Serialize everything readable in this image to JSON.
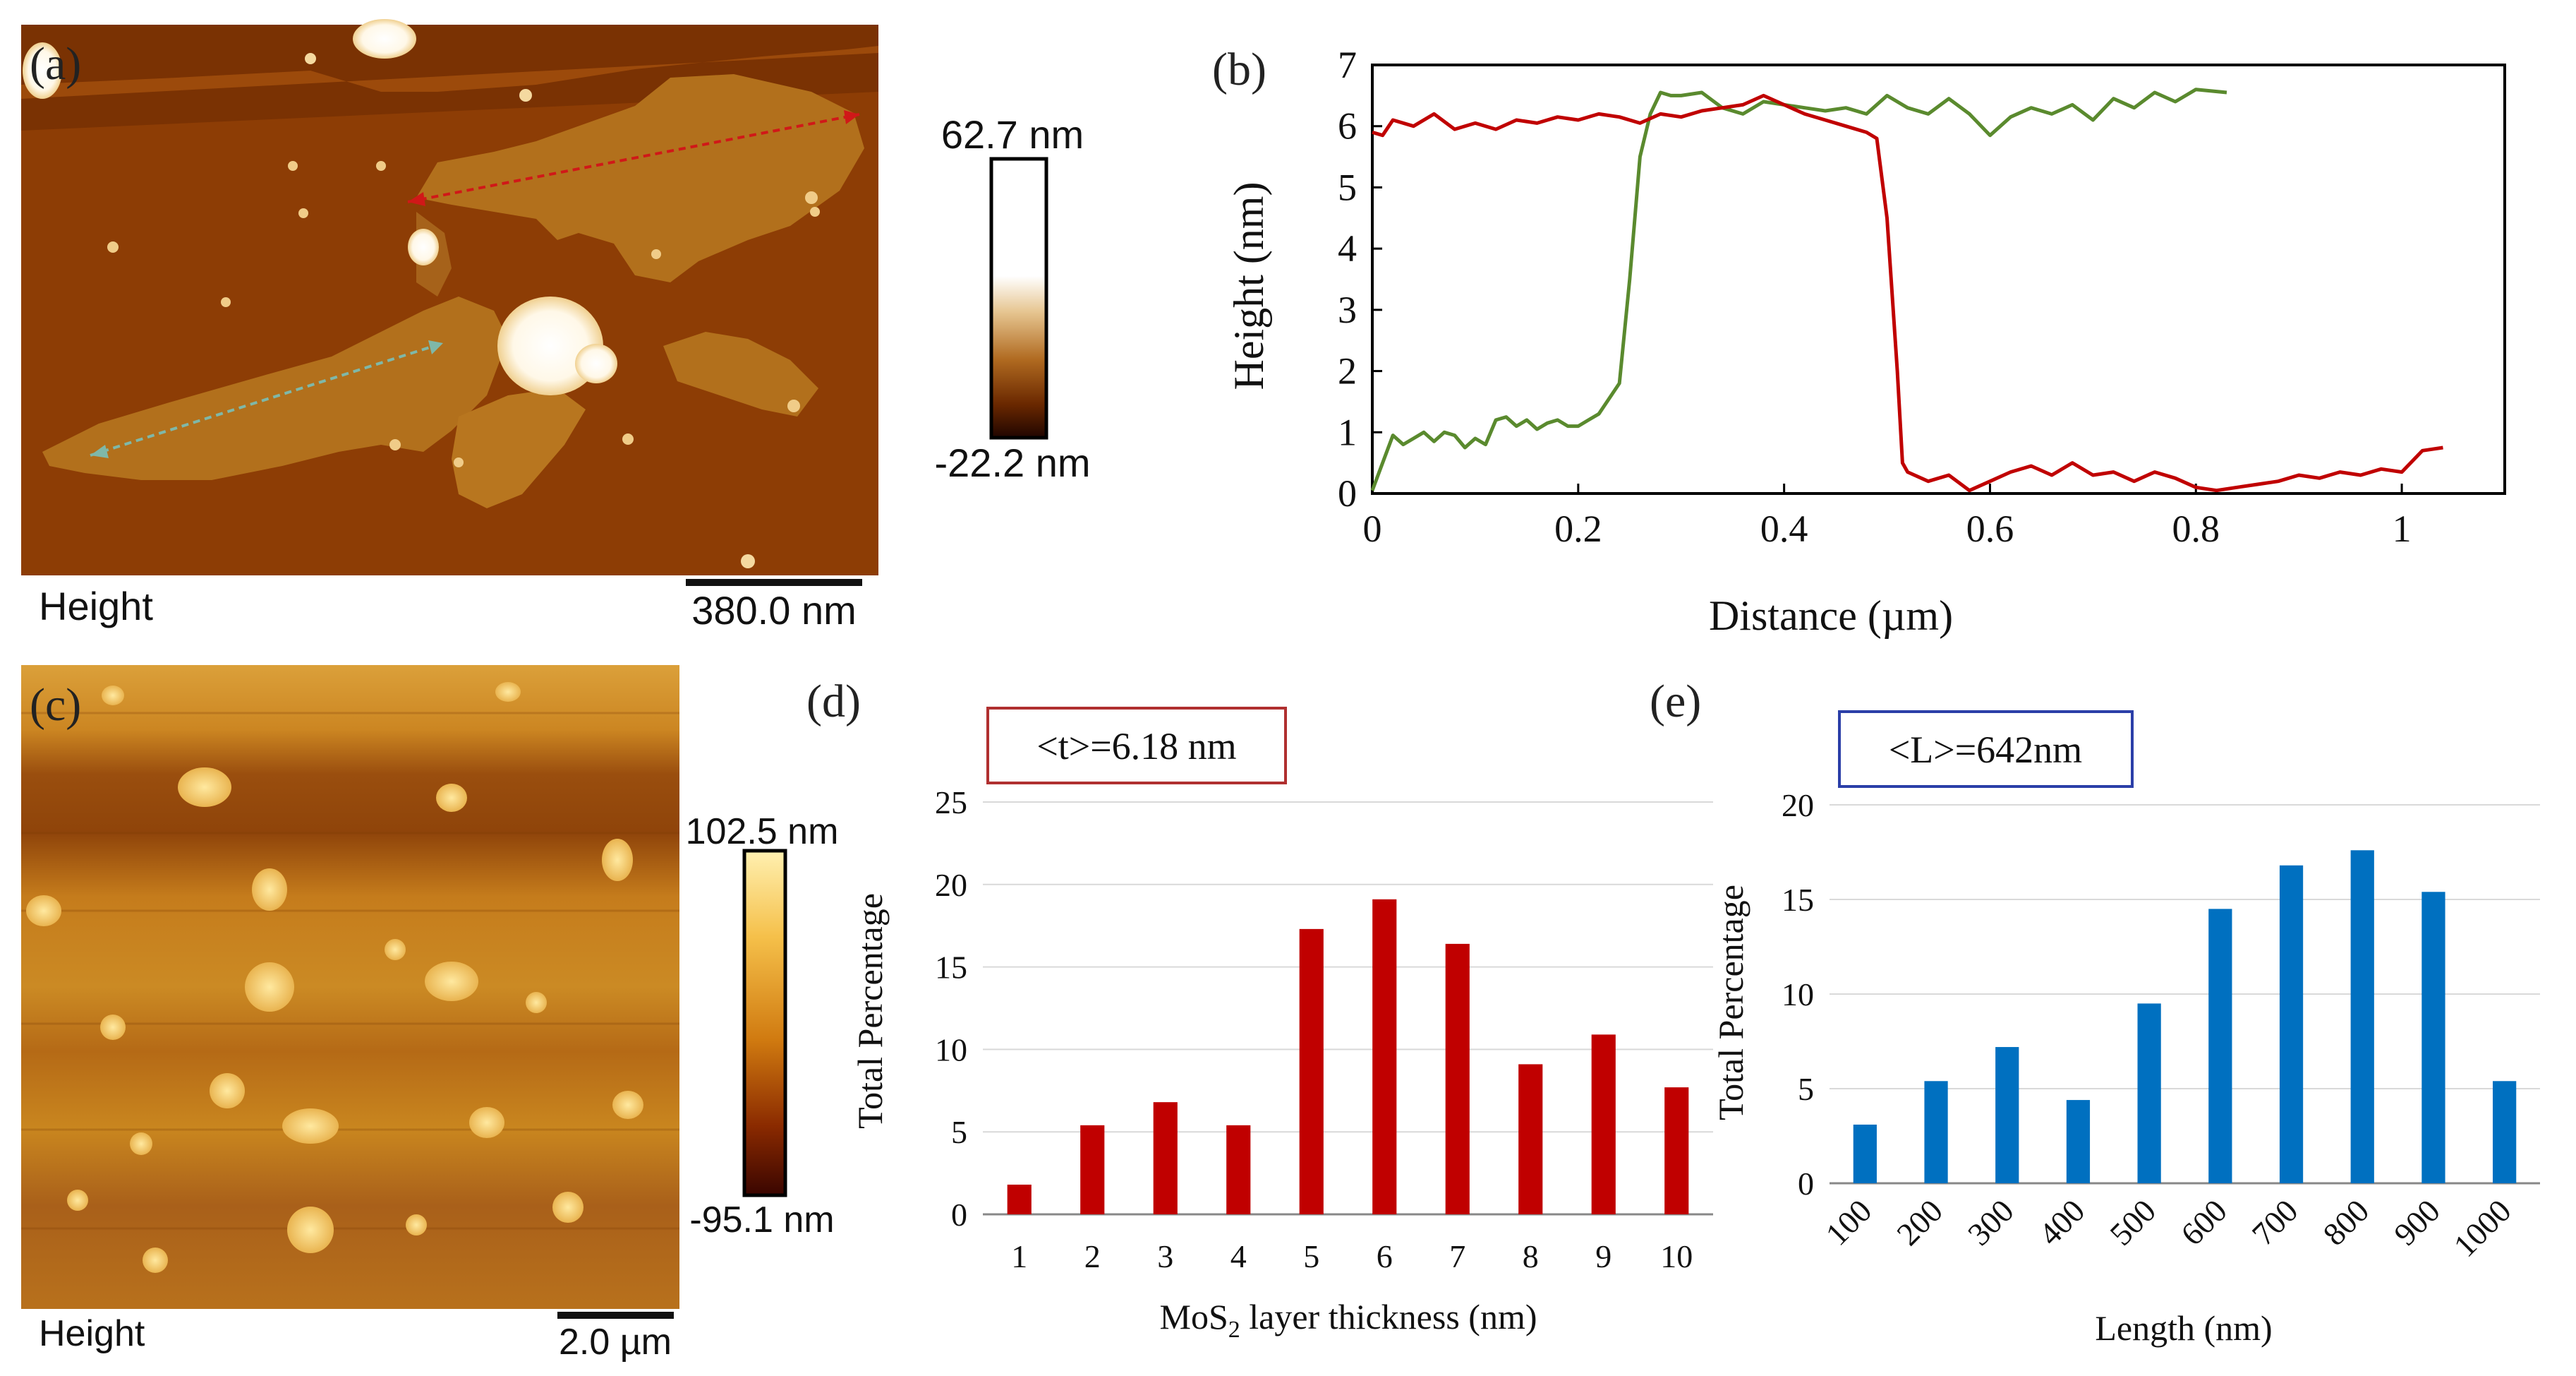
{
  "panels": {
    "a": {
      "label": "(a)",
      "bottom_label": "Height",
      "scalebar_label": "380.0 nm",
      "colorbar_max": "62.7 nm",
      "colorbar_min": "-22.2 nm"
    },
    "c": {
      "label": "(c)",
      "bottom_label": "Height",
      "scalebar_label": "2.0 µm",
      "colorbar_max": "102.5 nm",
      "colorbar_min": "-95.1 nm"
    },
    "d": {
      "label": "(d)",
      "annotation": "<t>=6.18 nm"
    },
    "e": {
      "label": "(e)",
      "annotation": "<L>=642nm"
    }
  },
  "colors": {
    "red_series": "#c00000",
    "green_series": "#5a8a2e",
    "blue_bars": "#0070c0",
    "afm_dark": "#5a1f00",
    "afm_mid": "#8b3d06",
    "afm_light": "#c98a2a"
  },
  "chart_data": [
    {
      "id": "b",
      "panel_label": "(b)",
      "type": "line",
      "title": "",
      "xlabel": "Distance (µm)",
      "ylabel": "Height (nm)",
      "xlim": [
        0,
        1.1
      ],
      "ylim": [
        0,
        7
      ],
      "xticks": [
        "0",
        "0.2",
        "0.4",
        "0.6",
        "0.8",
        "1"
      ],
      "xtick_values": [
        0,
        0.2,
        0.4,
        0.6,
        0.8,
        1.0
      ],
      "yticks": [
        "0",
        "1",
        "2",
        "3",
        "4",
        "5",
        "6",
        "7"
      ],
      "ytick_values": [
        0,
        1,
        2,
        3,
        4,
        5,
        6,
        7
      ],
      "series": [
        {
          "name": "green-profile",
          "color": "#5a8a2e",
          "x": [
            0,
            0.01,
            0.02,
            0.03,
            0.04,
            0.05,
            0.06,
            0.07,
            0.08,
            0.09,
            0.1,
            0.11,
            0.12,
            0.13,
            0.14,
            0.15,
            0.16,
            0.17,
            0.18,
            0.19,
            0.2,
            0.21,
            0.22,
            0.23,
            0.24,
            0.25,
            0.26,
            0.27,
            0.28,
            0.29,
            0.3,
            0.32,
            0.34,
            0.36,
            0.38,
            0.4,
            0.42,
            0.44,
            0.46,
            0.48,
            0.5,
            0.52,
            0.54,
            0.56,
            0.58,
            0.6,
            0.62,
            0.64,
            0.66,
            0.68,
            0.7,
            0.72,
            0.74,
            0.76,
            0.78,
            0.8,
            0.83
          ],
          "y": [
            0.05,
            0.5,
            0.95,
            0.8,
            0.9,
            1.0,
            0.85,
            1.0,
            0.95,
            0.75,
            0.9,
            0.8,
            1.2,
            1.25,
            1.1,
            1.2,
            1.05,
            1.15,
            1.2,
            1.1,
            1.1,
            1.2,
            1.3,
            1.55,
            1.8,
            3.5,
            5.5,
            6.2,
            6.55,
            6.5,
            6.5,
            6.55,
            6.3,
            6.2,
            6.4,
            6.35,
            6.3,
            6.25,
            6.3,
            6.2,
            6.5,
            6.3,
            6.2,
            6.45,
            6.2,
            5.85,
            6.15,
            6.3,
            6.2,
            6.35,
            6.1,
            6.45,
            6.3,
            6.55,
            6.4,
            6.6,
            6.55
          ]
        },
        {
          "name": "red-profile",
          "color": "#c00000",
          "x": [
            0,
            0.01,
            0.02,
            0.04,
            0.06,
            0.08,
            0.1,
            0.12,
            0.14,
            0.16,
            0.18,
            0.2,
            0.22,
            0.24,
            0.26,
            0.28,
            0.3,
            0.32,
            0.34,
            0.36,
            0.38,
            0.4,
            0.42,
            0.44,
            0.46,
            0.48,
            0.49,
            0.5,
            0.51,
            0.515,
            0.52,
            0.54,
            0.56,
            0.58,
            0.6,
            0.62,
            0.64,
            0.66,
            0.68,
            0.7,
            0.72,
            0.74,
            0.76,
            0.78,
            0.8,
            0.82,
            0.84,
            0.86,
            0.88,
            0.9,
            0.92,
            0.94,
            0.96,
            0.98,
            1.0,
            1.02,
            1.04
          ],
          "y": [
            5.9,
            5.85,
            6.1,
            6.0,
            6.2,
            5.95,
            6.05,
            5.95,
            6.1,
            6.05,
            6.15,
            6.1,
            6.2,
            6.15,
            6.05,
            6.2,
            6.15,
            6.25,
            6.3,
            6.35,
            6.5,
            6.35,
            6.2,
            6.1,
            6.0,
            5.9,
            5.8,
            4.5,
            2.0,
            0.5,
            0.35,
            0.2,
            0.3,
            0.05,
            0.2,
            0.35,
            0.45,
            0.3,
            0.5,
            0.3,
            0.35,
            0.2,
            0.35,
            0.25,
            0.1,
            0.05,
            0.1,
            0.15,
            0.2,
            0.3,
            0.25,
            0.35,
            0.3,
            0.4,
            0.35,
            0.7,
            0.75
          ]
        }
      ]
    },
    {
      "id": "d",
      "type": "bar",
      "title": "",
      "xlabel": "MoS2 layer thickness (nm)",
      "xlabel_main": "MoS",
      "xlabel_sub": "2",
      "xlabel_rest": " layer thickness (nm)",
      "ylabel": "Total Percentage",
      "categories": [
        "1",
        "2",
        "3",
        "4",
        "5",
        "6",
        "7",
        "8",
        "9",
        "10"
      ],
      "values": [
        1.8,
        5.4,
        6.8,
        5.4,
        17.3,
        19.1,
        16.4,
        9.1,
        10.9,
        7.7
      ],
      "ylim": [
        0,
        25
      ],
      "yticks": [
        "0",
        "5",
        "10",
        "15",
        "20",
        "25"
      ],
      "ytick_values": [
        0,
        5,
        10,
        15,
        20,
        25
      ],
      "bar_color": "#c00000",
      "grid": true
    },
    {
      "id": "e",
      "type": "bar",
      "title": "",
      "xlabel": "Length (nm)",
      "ylabel": "Total Percentage",
      "categories": [
        "100",
        "200",
        "300",
        "400",
        "500",
        "600",
        "700",
        "800",
        "900",
        "1000"
      ],
      "values": [
        3.1,
        5.4,
        7.2,
        4.4,
        9.5,
        14.5,
        16.8,
        17.6,
        15.4,
        5.4
      ],
      "ylim": [
        0,
        20
      ],
      "yticks": [
        "0",
        "5",
        "10",
        "15",
        "20"
      ],
      "ytick_values": [
        0,
        5,
        10,
        15,
        20
      ],
      "bar_color": "#0070c0",
      "grid": true
    }
  ]
}
